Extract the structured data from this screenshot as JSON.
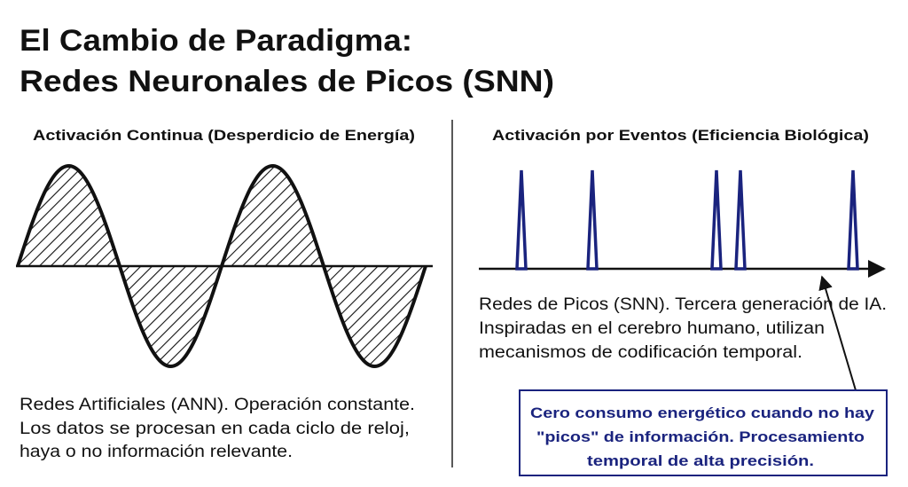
{
  "title": {
    "lines": [
      "El Cambio de Paradigma:",
      "Redes Neuronales de Picos (SNN)"
    ]
  },
  "left_panel": {
    "heading": "Activación Continua (Desperdicio de Energía)",
    "description": [
      "Redes Artificiales (ANN). Operación constante.",
      "Los datos se procesan en cada ciclo de reloj,",
      "haya o no información relevante."
    ]
  },
  "right_panel": {
    "heading": "Activación por Eventos (Eficiencia Biológica)",
    "description": [
      "Redes de Picos (SNN). Tercera generación de IA.",
      "Inspiradas en el cerebro humano, utilizan",
      "mecanismos de codificación temporal."
    ],
    "callout": [
      "Cero consumo energético cuando no hay",
      "\"picos\" de información. Procesamiento",
      "temporal de alta precisión."
    ]
  }
}
